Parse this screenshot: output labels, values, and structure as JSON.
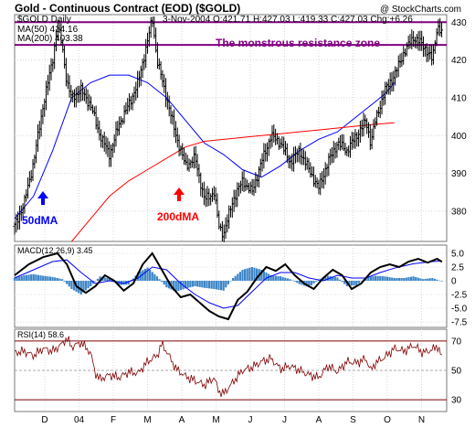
{
  "header": {
    "title": "Gold - Continuous Contract (EOD) ($GOLD)",
    "watermark": "@ StockCharts.com",
    "symbol_label": "$GOLD Daily",
    "quote_line": "3-Nov-2004 O:421.71 H:427.03 L:419.33 C:427.03 Chg:+6.26",
    "ma50_legend": "MA(50) 414.16",
    "ma200_legend": "MA(200) 403.38"
  },
  "annotations": {
    "resistance_label": "The monstrous resistance zone",
    "ma50_label": "50dMA",
    "ma200_label": "200dMA"
  },
  "colors": {
    "price": "#000000",
    "ma50": "#0000ff",
    "ma200": "#ff0000",
    "resistance": "#800080",
    "macd_hist": "#3d85c6",
    "rsi_line": "#800000",
    "arrow_blue": "#0000ff",
    "arrow_red": "#ff0000"
  },
  "chart_data": [
    {
      "type": "ohlc",
      "panel": "price",
      "ylim": [
        372,
        432
      ],
      "yticks": [
        380,
        390,
        400,
        410,
        420,
        430
      ],
      "grid": true,
      "x_labels": [
        "D",
        "04",
        "F",
        "M",
        "A",
        "M",
        "J",
        "J",
        "A",
        "S",
        "O",
        "N"
      ],
      "resistance_zone": [
        424,
        430
      ],
      "series": [
        {
          "name": "MA(50)",
          "points": [
            [
              0,
              378
            ],
            [
              20,
              384
            ],
            [
              40,
              396
            ],
            [
              60,
              410
            ],
            [
              80,
              414
            ],
            [
              100,
              416
            ],
            [
              120,
              416
            ],
            [
              140,
              414
            ],
            [
              160,
              410
            ],
            [
              180,
              404
            ],
            [
              200,
              398
            ],
            [
              220,
              395
            ],
            [
              240,
              391
            ],
            [
              260,
              389
            ],
            [
              280,
              392
            ],
            [
              300,
              396
            ],
            [
              320,
              399
            ],
            [
              340,
              401
            ],
            [
              360,
              405
            ],
            [
              380,
              409
            ],
            [
              390,
              411
            ],
            [
              400,
              414
            ]
          ]
        },
        {
          "name": "MA(200)",
          "points": [
            [
              60,
              372
            ],
            [
              80,
              378
            ],
            [
              100,
              384
            ],
            [
              120,
              388
            ],
            [
              140,
              391
            ],
            [
              160,
              394
            ],
            [
              180,
              397
            ],
            [
              200,
              398.5
            ],
            [
              220,
              399
            ],
            [
              240,
              399.5
            ],
            [
              260,
              400
            ],
            [
              280,
              400.5
            ],
            [
              300,
              401
            ],
            [
              320,
              401.5
            ],
            [
              340,
              402
            ],
            [
              360,
              402.5
            ],
            [
              380,
              403
            ],
            [
              400,
              403.38
            ]
          ]
        }
      ],
      "closes": [
        [
          0,
          376
        ],
        [
          10,
          382
        ],
        [
          20,
          393
        ],
        [
          30,
          408
        ],
        [
          40,
          420
        ],
        [
          45,
          429
        ],
        [
          50,
          424
        ],
        [
          55,
          414
        ],
        [
          60,
          410
        ],
        [
          70,
          412
        ],
        [
          80,
          408
        ],
        [
          90,
          400
        ],
        [
          100,
          395
        ],
        [
          110,
          403
        ],
        [
          120,
          408
        ],
        [
          130,
          414
        ],
        [
          140,
          425
        ],
        [
          145,
          431
        ],
        [
          150,
          420
        ],
        [
          160,
          410
        ],
        [
          170,
          400
        ],
        [
          180,
          392
        ],
        [
          190,
          394
        ],
        [
          200,
          383
        ],
        [
          210,
          385
        ],
        [
          215,
          376
        ],
        [
          220,
          374
        ],
        [
          230,
          383
        ],
        [
          240,
          388
        ],
        [
          250,
          385
        ],
        [
          260,
          393
        ],
        [
          270,
          400
        ],
        [
          280,
          398
        ],
        [
          290,
          393
        ],
        [
          300,
          396
        ],
        [
          310,
          391
        ],
        [
          320,
          386
        ],
        [
          330,
          393
        ],
        [
          340,
          398
        ],
        [
          350,
          396
        ],
        [
          360,
          400
        ],
        [
          370,
          404
        ],
        [
          375,
          398
        ],
        [
          380,
          404
        ],
        [
          390,
          412
        ],
        [
          400,
          416
        ],
        [
          410,
          422
        ],
        [
          420,
          426
        ],
        [
          430,
          424
        ],
        [
          440,
          420
        ],
        [
          445,
          429
        ],
        [
          450,
          427.03
        ]
      ]
    },
    {
      "type": "line",
      "panel": "MACD(12,26,9)",
      "legend": "MACD(12,26,9) 3.45",
      "ylim": [
        -8.5,
        6.5
      ],
      "yticks": [
        "5.0",
        "2.5",
        "0",
        "-2.5",
        "-5.0",
        "-7.5"
      ],
      "series": [
        {
          "name": "MACD",
          "points": [
            [
              0,
              1
            ],
            [
              15,
              3
            ],
            [
              30,
              4.3
            ],
            [
              45,
              5
            ],
            [
              55,
              3
            ],
            [
              65,
              -1
            ],
            [
              75,
              -2.2
            ],
            [
              85,
              -1
            ],
            [
              95,
              1
            ],
            [
              105,
              0
            ],
            [
              115,
              -1.8
            ],
            [
              125,
              -0.5
            ],
            [
              135,
              3
            ],
            [
              145,
              5
            ],
            [
              155,
              2
            ],
            [
              165,
              -1
            ],
            [
              175,
              -3
            ],
            [
              185,
              -2.5
            ],
            [
              195,
              -4
            ],
            [
              205,
              -5.5
            ],
            [
              215,
              -6.5
            ],
            [
              225,
              -7
            ],
            [
              235,
              -3.5
            ],
            [
              245,
              -2
            ],
            [
              255,
              0.5
            ],
            [
              265,
              2.5
            ],
            [
              275,
              1.8
            ],
            [
              285,
              3
            ],
            [
              295,
              1
            ],
            [
              305,
              -0.5
            ],
            [
              315,
              -1.5
            ],
            [
              325,
              0.5
            ],
            [
              335,
              2
            ],
            [
              345,
              1
            ],
            [
              355,
              -1.5
            ],
            [
              365,
              -0.5
            ],
            [
              375,
              1.5
            ],
            [
              385,
              2.5
            ],
            [
              395,
              3
            ],
            [
              405,
              2.5
            ],
            [
              415,
              3.5
            ],
            [
              425,
              4
            ],
            [
              435,
              3.3
            ],
            [
              445,
              4
            ],
            [
              450,
              3.45
            ]
          ]
        },
        {
          "name": "Signal",
          "points": [
            [
              0,
              0.5
            ],
            [
              20,
              2
            ],
            [
              40,
              3.5
            ],
            [
              55,
              3.8
            ],
            [
              70,
              1.5
            ],
            [
              85,
              -0.5
            ],
            [
              100,
              0
            ],
            [
              115,
              -0.5
            ],
            [
              130,
              0.5
            ],
            [
              145,
              2.5
            ],
            [
              160,
              2
            ],
            [
              175,
              -0.5
            ],
            [
              190,
              -2.5
            ],
            [
              205,
              -4
            ],
            [
              220,
              -5
            ],
            [
              235,
              -4.5
            ],
            [
              250,
              -2
            ],
            [
              265,
              0.5
            ],
            [
              280,
              1.5
            ],
            [
              295,
              1.5
            ],
            [
              310,
              0.5
            ],
            [
              325,
              0
            ],
            [
              340,
              1
            ],
            [
              355,
              0.5
            ],
            [
              370,
              0.5
            ],
            [
              385,
              1.5
            ],
            [
              400,
              2.3
            ],
            [
              420,
              3.1
            ],
            [
              440,
              3.5
            ],
            [
              450,
              3.6
            ]
          ]
        }
      ],
      "histogram": [
        [
          0,
          0.5
        ],
        [
          10,
          1
        ],
        [
          20,
          1.2
        ],
        [
          30,
          0.9
        ],
        [
          40,
          0.7
        ],
        [
          50,
          0.3
        ],
        [
          60,
          -1.5
        ],
        [
          70,
          -2.5
        ],
        [
          80,
          -1
        ],
        [
          90,
          0.8
        ],
        [
          100,
          0.4
        ],
        [
          110,
          -0.8
        ],
        [
          120,
          -0.7
        ],
        [
          130,
          1.5
        ],
        [
          140,
          2.4
        ],
        [
          150,
          0.8
        ],
        [
          160,
          -1.2
        ],
        [
          170,
          -2
        ],
        [
          180,
          -1.4
        ],
        [
          190,
          -1
        ],
        [
          200,
          -1.3
        ],
        [
          210,
          -1.5
        ],
        [
          220,
          -1.8
        ],
        [
          230,
          0.5
        ],
        [
          240,
          2
        ],
        [
          250,
          2.5
        ],
        [
          260,
          2
        ],
        [
          270,
          1
        ],
        [
          280,
          0.8
        ],
        [
          290,
          0.3
        ],
        [
          300,
          -0.6
        ],
        [
          310,
          -1.2
        ],
        [
          320,
          0.2
        ],
        [
          330,
          0.9
        ],
        [
          340,
          0.6
        ],
        [
          350,
          -1
        ],
        [
          360,
          -0.8
        ],
        [
          370,
          0.6
        ],
        [
          380,
          0.9
        ],
        [
          390,
          0.8
        ],
        [
          400,
          0.5
        ],
        [
          410,
          0.5
        ],
        [
          420,
          0.8
        ],
        [
          430,
          0.3
        ],
        [
          440,
          0.5
        ],
        [
          450,
          -0.1
        ]
      ]
    },
    {
      "type": "line",
      "panel": "RSI(14)",
      "legend": "RSI(14) 58.6",
      "ylim": [
        22,
        78
      ],
      "yticks": [
        70,
        50,
        30
      ],
      "series": [
        {
          "name": "RSI",
          "points": [
            [
              0,
              62
            ],
            [
              10,
              63
            ],
            [
              20,
              60
            ],
            [
              30,
              65
            ],
            [
              40,
              63
            ],
            [
              50,
              68
            ],
            [
              55,
              72
            ],
            [
              60,
              66
            ],
            [
              70,
              69
            ],
            [
              80,
              62
            ],
            [
              85,
              48
            ],
            [
              90,
              44
            ],
            [
              100,
              47
            ],
            [
              110,
              45
            ],
            [
              120,
              49
            ],
            [
              130,
              48
            ],
            [
              140,
              56
            ],
            [
              150,
              60
            ],
            [
              155,
              68
            ],
            [
              160,
              63
            ],
            [
              170,
              51
            ],
            [
              180,
              46
            ],
            [
              190,
              43
            ],
            [
              200,
              40
            ],
            [
              210,
              45
            ],
            [
              215,
              36
            ],
            [
              220,
              34
            ],
            [
              230,
              42
            ],
            [
              240,
              50
            ],
            [
              250,
              52
            ],
            [
              260,
              56
            ],
            [
              270,
              58
            ],
            [
              280,
              51
            ],
            [
              290,
              53
            ],
            [
              300,
              50
            ],
            [
              310,
              47
            ],
            [
              320,
              45
            ],
            [
              330,
              53
            ],
            [
              340,
              49
            ],
            [
              350,
              56
            ],
            [
              360,
              55
            ],
            [
              370,
              58
            ],
            [
              375,
              50
            ],
            [
              380,
              55
            ],
            [
              390,
              59
            ],
            [
              400,
              65
            ],
            [
              410,
              63
            ],
            [
              420,
              67
            ],
            [
              430,
              62
            ],
            [
              440,
              64
            ],
            [
              445,
              67
            ],
            [
              450,
              58.6
            ]
          ]
        }
      ]
    }
  ]
}
